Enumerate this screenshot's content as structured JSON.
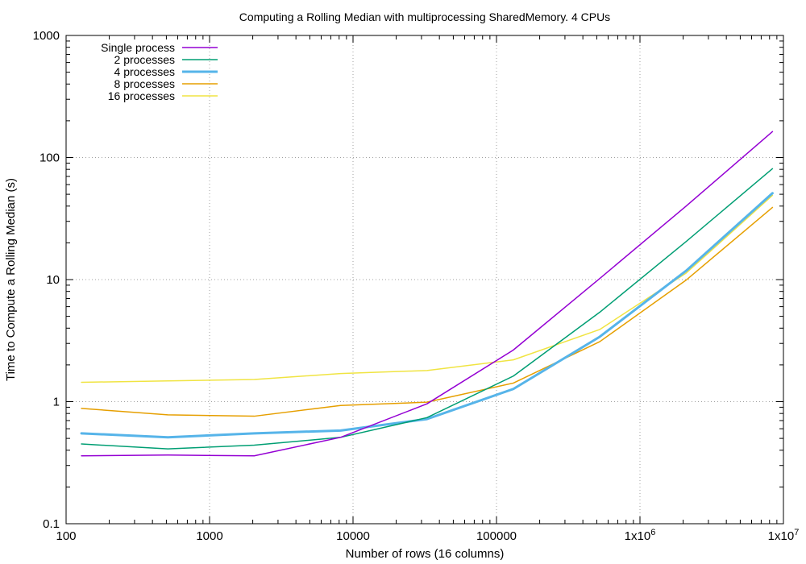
{
  "chart_data": {
    "type": "line",
    "title": "Computing a Rolling Median with multiprocessing SharedMemory. 4 CPUs",
    "xlabel": "Number of rows (16 columns)",
    "ylabel": "Time to Compute a Rolling Median (s)",
    "xscale": "log",
    "yscale": "log",
    "xlim": [
      100,
      10000000
    ],
    "ylim": [
      0.1,
      1000
    ],
    "grid": true,
    "legend_position": "top-left",
    "x_ticks": [
      {
        "value": 100,
        "label": "100"
      },
      {
        "value": 1000,
        "label": "1000"
      },
      {
        "value": 10000,
        "label": "10000"
      },
      {
        "value": 100000,
        "label": "100000"
      },
      {
        "value": 1000000,
        "label": "1x10",
        "sup": "6"
      },
      {
        "value": 10000000,
        "label": "1x10",
        "sup": "7"
      }
    ],
    "y_ticks": [
      {
        "value": 0.1,
        "label": "0.1"
      },
      {
        "value": 1,
        "label": "1"
      },
      {
        "value": 10,
        "label": "10"
      },
      {
        "value": 100,
        "label": "100"
      },
      {
        "value": 1000,
        "label": "1000"
      }
    ],
    "x": [
      128,
      512,
      2048,
      8192,
      32768,
      131072,
      524288,
      2097152,
      8388608
    ],
    "series": [
      {
        "name": "Single process",
        "color": "#9400d3",
        "width": 1.5,
        "values": [
          0.36,
          0.365,
          0.36,
          0.51,
          0.96,
          2.65,
          10.2,
          40,
          163
        ]
      },
      {
        "name": "2 processes",
        "color": "#009e73",
        "width": 1.5,
        "values": [
          0.45,
          0.41,
          0.44,
          0.51,
          0.74,
          1.62,
          5.4,
          20.5,
          81
        ]
      },
      {
        "name": "4 processes",
        "color": "#56b4e9",
        "width": 3,
        "values": [
          0.55,
          0.51,
          0.55,
          0.58,
          0.72,
          1.27,
          3.4,
          11.8,
          51
        ]
      },
      {
        "name": "8 processes",
        "color": "#e69f00",
        "width": 1.5,
        "values": [
          0.88,
          0.78,
          0.76,
          0.93,
          0.99,
          1.42,
          3.1,
          9.9,
          39
        ]
      },
      {
        "name": "16 processes",
        "color": "#f0e442",
        "width": 1.5,
        "values": [
          1.44,
          1.48,
          1.52,
          1.7,
          1.8,
          2.2,
          3.9,
          11.3,
          49
        ]
      }
    ]
  }
}
